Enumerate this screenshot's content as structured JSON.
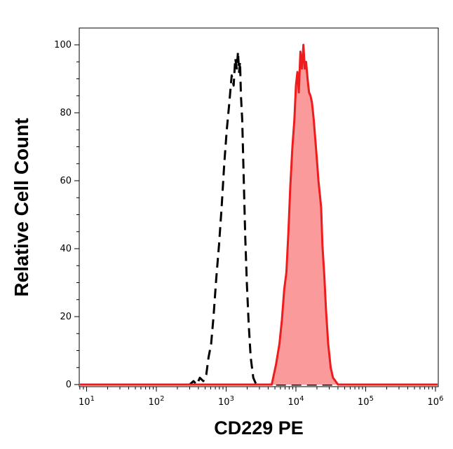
{
  "chart_data": {
    "type": "area",
    "xlabel": "CD229 PE",
    "ylabel": "Relative Cell Count",
    "xscale": "log",
    "xlim": [
      7,
      1200000
    ],
    "ylim": [
      0,
      100
    ],
    "grid": false,
    "legend": "none",
    "x_ticks": [
      {
        "base": "10",
        "exp": "1",
        "value": 10
      },
      {
        "base": "10",
        "exp": "2",
        "value": 100
      },
      {
        "base": "10",
        "exp": "3",
        "value": 1000
      },
      {
        "base": "10",
        "exp": "4",
        "value": 10000
      },
      {
        "base": "10",
        "exp": "5",
        "value": 100000
      },
      {
        "base": "10",
        "exp": "6",
        "value": 1000000
      }
    ],
    "y_ticks": [
      "0",
      "20",
      "40",
      "60",
      "80",
      "100"
    ],
    "series": [
      {
        "style": "dashed",
        "color": "#000000",
        "fill": "none",
        "x": [
          7,
          300,
          340,
          380,
          420,
          470,
          520,
          560,
          610,
          660,
          720,
          790,
          860,
          940,
          1020,
          1100,
          1200,
          1280,
          1350,
          1420,
          1480,
          1530,
          1580,
          1630,
          1700,
          1780,
          1880,
          1980,
          2100,
          2250,
          2450,
          2700,
          3100,
          1200000
        ],
        "y": [
          0,
          0,
          1,
          0,
          2,
          1,
          3,
          8,
          12,
          20,
          31,
          41,
          52,
          65,
          75,
          82,
          91,
          88,
          96,
          93,
          98,
          92,
          95,
          85,
          78,
          62,
          43,
          30,
          18,
          8,
          2,
          0,
          0,
          0
        ]
      },
      {
        "style": "solid",
        "color": "#ee1c1c",
        "fill": "#fa9a9a",
        "x": [
          7,
          4500,
          5200,
          5800,
          6300,
          6800,
          7300,
          7800,
          8300,
          8900,
          9500,
          10000,
          10500,
          11000,
          11600,
          12200,
          12800,
          13400,
          14000,
          14700,
          15400,
          16200,
          17000,
          18000,
          19000,
          20000,
          21000,
          22000,
          23000,
          24000,
          25500,
          27000,
          29000,
          31500,
          34000,
          37000,
          40000,
          1200000
        ],
        "y": [
          0,
          0,
          6,
          12,
          19,
          28,
          33,
          45,
          58,
          70,
          78,
          88,
          92,
          86,
          98,
          93,
          100,
          93,
          95,
          90,
          86,
          85,
          83,
          78,
          72,
          66,
          60,
          56,
          52,
          41,
          32,
          22,
          12,
          5,
          2,
          1,
          0,
          0
        ]
      }
    ]
  }
}
